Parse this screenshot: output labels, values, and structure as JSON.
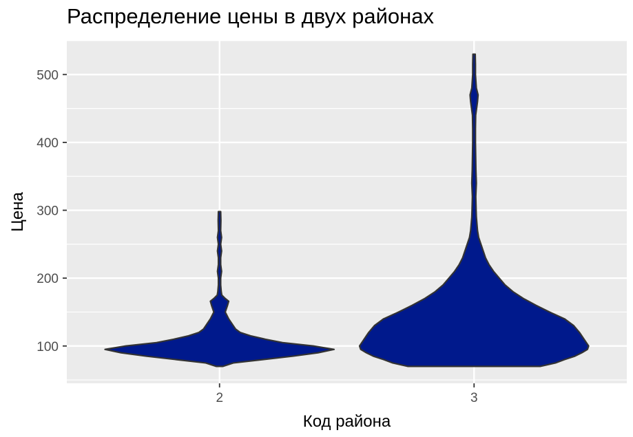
{
  "chart_data": {
    "type": "violin",
    "title": "Распределение цены в двух районах",
    "xlabel": "Код района",
    "ylabel": "Цена",
    "categories": [
      "2",
      "3"
    ],
    "ylim": [
      45,
      550
    ],
    "yticks": [
      100,
      200,
      300,
      400,
      500
    ],
    "grid": true,
    "legend": "none",
    "fill_color": "#00198C",
    "outline_color": "#333333",
    "panel_background": "#EBEBEB",
    "gridline_color": "#FFFFFF",
    "series": [
      {
        "category": "2",
        "min": 70,
        "max": 298,
        "density": [
          [
            70,
            0.03
          ],
          [
            75,
            0.12
          ],
          [
            80,
            0.38
          ],
          [
            85,
            0.64
          ],
          [
            90,
            0.86
          ],
          [
            95,
            1.0
          ],
          [
            100,
            0.82
          ],
          [
            105,
            0.55
          ],
          [
            110,
            0.4
          ],
          [
            115,
            0.27
          ],
          [
            120,
            0.18
          ],
          [
            125,
            0.14
          ],
          [
            130,
            0.12
          ],
          [
            140,
            0.08
          ],
          [
            150,
            0.05
          ],
          [
            160,
            0.07
          ],
          [
            166,
            0.08
          ],
          [
            170,
            0.05
          ],
          [
            175,
            0.02
          ],
          [
            180,
            0.015
          ],
          [
            190,
            0.01
          ],
          [
            200,
            0.01
          ],
          [
            210,
            0.018
          ],
          [
            220,
            0.01
          ],
          [
            230,
            0.01
          ],
          [
            240,
            0.018
          ],
          [
            250,
            0.01
          ],
          [
            260,
            0.018
          ],
          [
            270,
            0.01
          ],
          [
            285,
            0.012
          ],
          [
            298,
            0.01
          ]
        ]
      },
      {
        "category": "3",
        "min": 70,
        "max": 530,
        "density": [
          [
            70,
            0.58
          ],
          [
            75,
            0.71
          ],
          [
            80,
            0.79
          ],
          [
            85,
            0.88
          ],
          [
            90,
            0.94
          ],
          [
            95,
            0.99
          ],
          [
            100,
            1.0
          ],
          [
            110,
            0.96
          ],
          [
            120,
            0.92
          ],
          [
            130,
            0.87
          ],
          [
            140,
            0.79
          ],
          [
            150,
            0.66
          ],
          [
            160,
            0.54
          ],
          [
            170,
            0.43
          ],
          [
            180,
            0.34
          ],
          [
            190,
            0.27
          ],
          [
            200,
            0.22
          ],
          [
            210,
            0.17
          ],
          [
            220,
            0.13
          ],
          [
            230,
            0.1
          ],
          [
            240,
            0.08
          ],
          [
            250,
            0.06
          ],
          [
            260,
            0.04
          ],
          [
            270,
            0.03
          ],
          [
            280,
            0.025
          ],
          [
            290,
            0.02
          ],
          [
            300,
            0.018
          ],
          [
            320,
            0.015
          ],
          [
            340,
            0.02
          ],
          [
            360,
            0.016
          ],
          [
            380,
            0.014
          ],
          [
            400,
            0.012
          ],
          [
            420,
            0.012
          ],
          [
            440,
            0.014
          ],
          [
            460,
            0.03
          ],
          [
            470,
            0.035
          ],
          [
            480,
            0.02
          ],
          [
            500,
            0.012
          ],
          [
            515,
            0.012
          ],
          [
            530,
            0.01
          ]
        ]
      }
    ]
  }
}
